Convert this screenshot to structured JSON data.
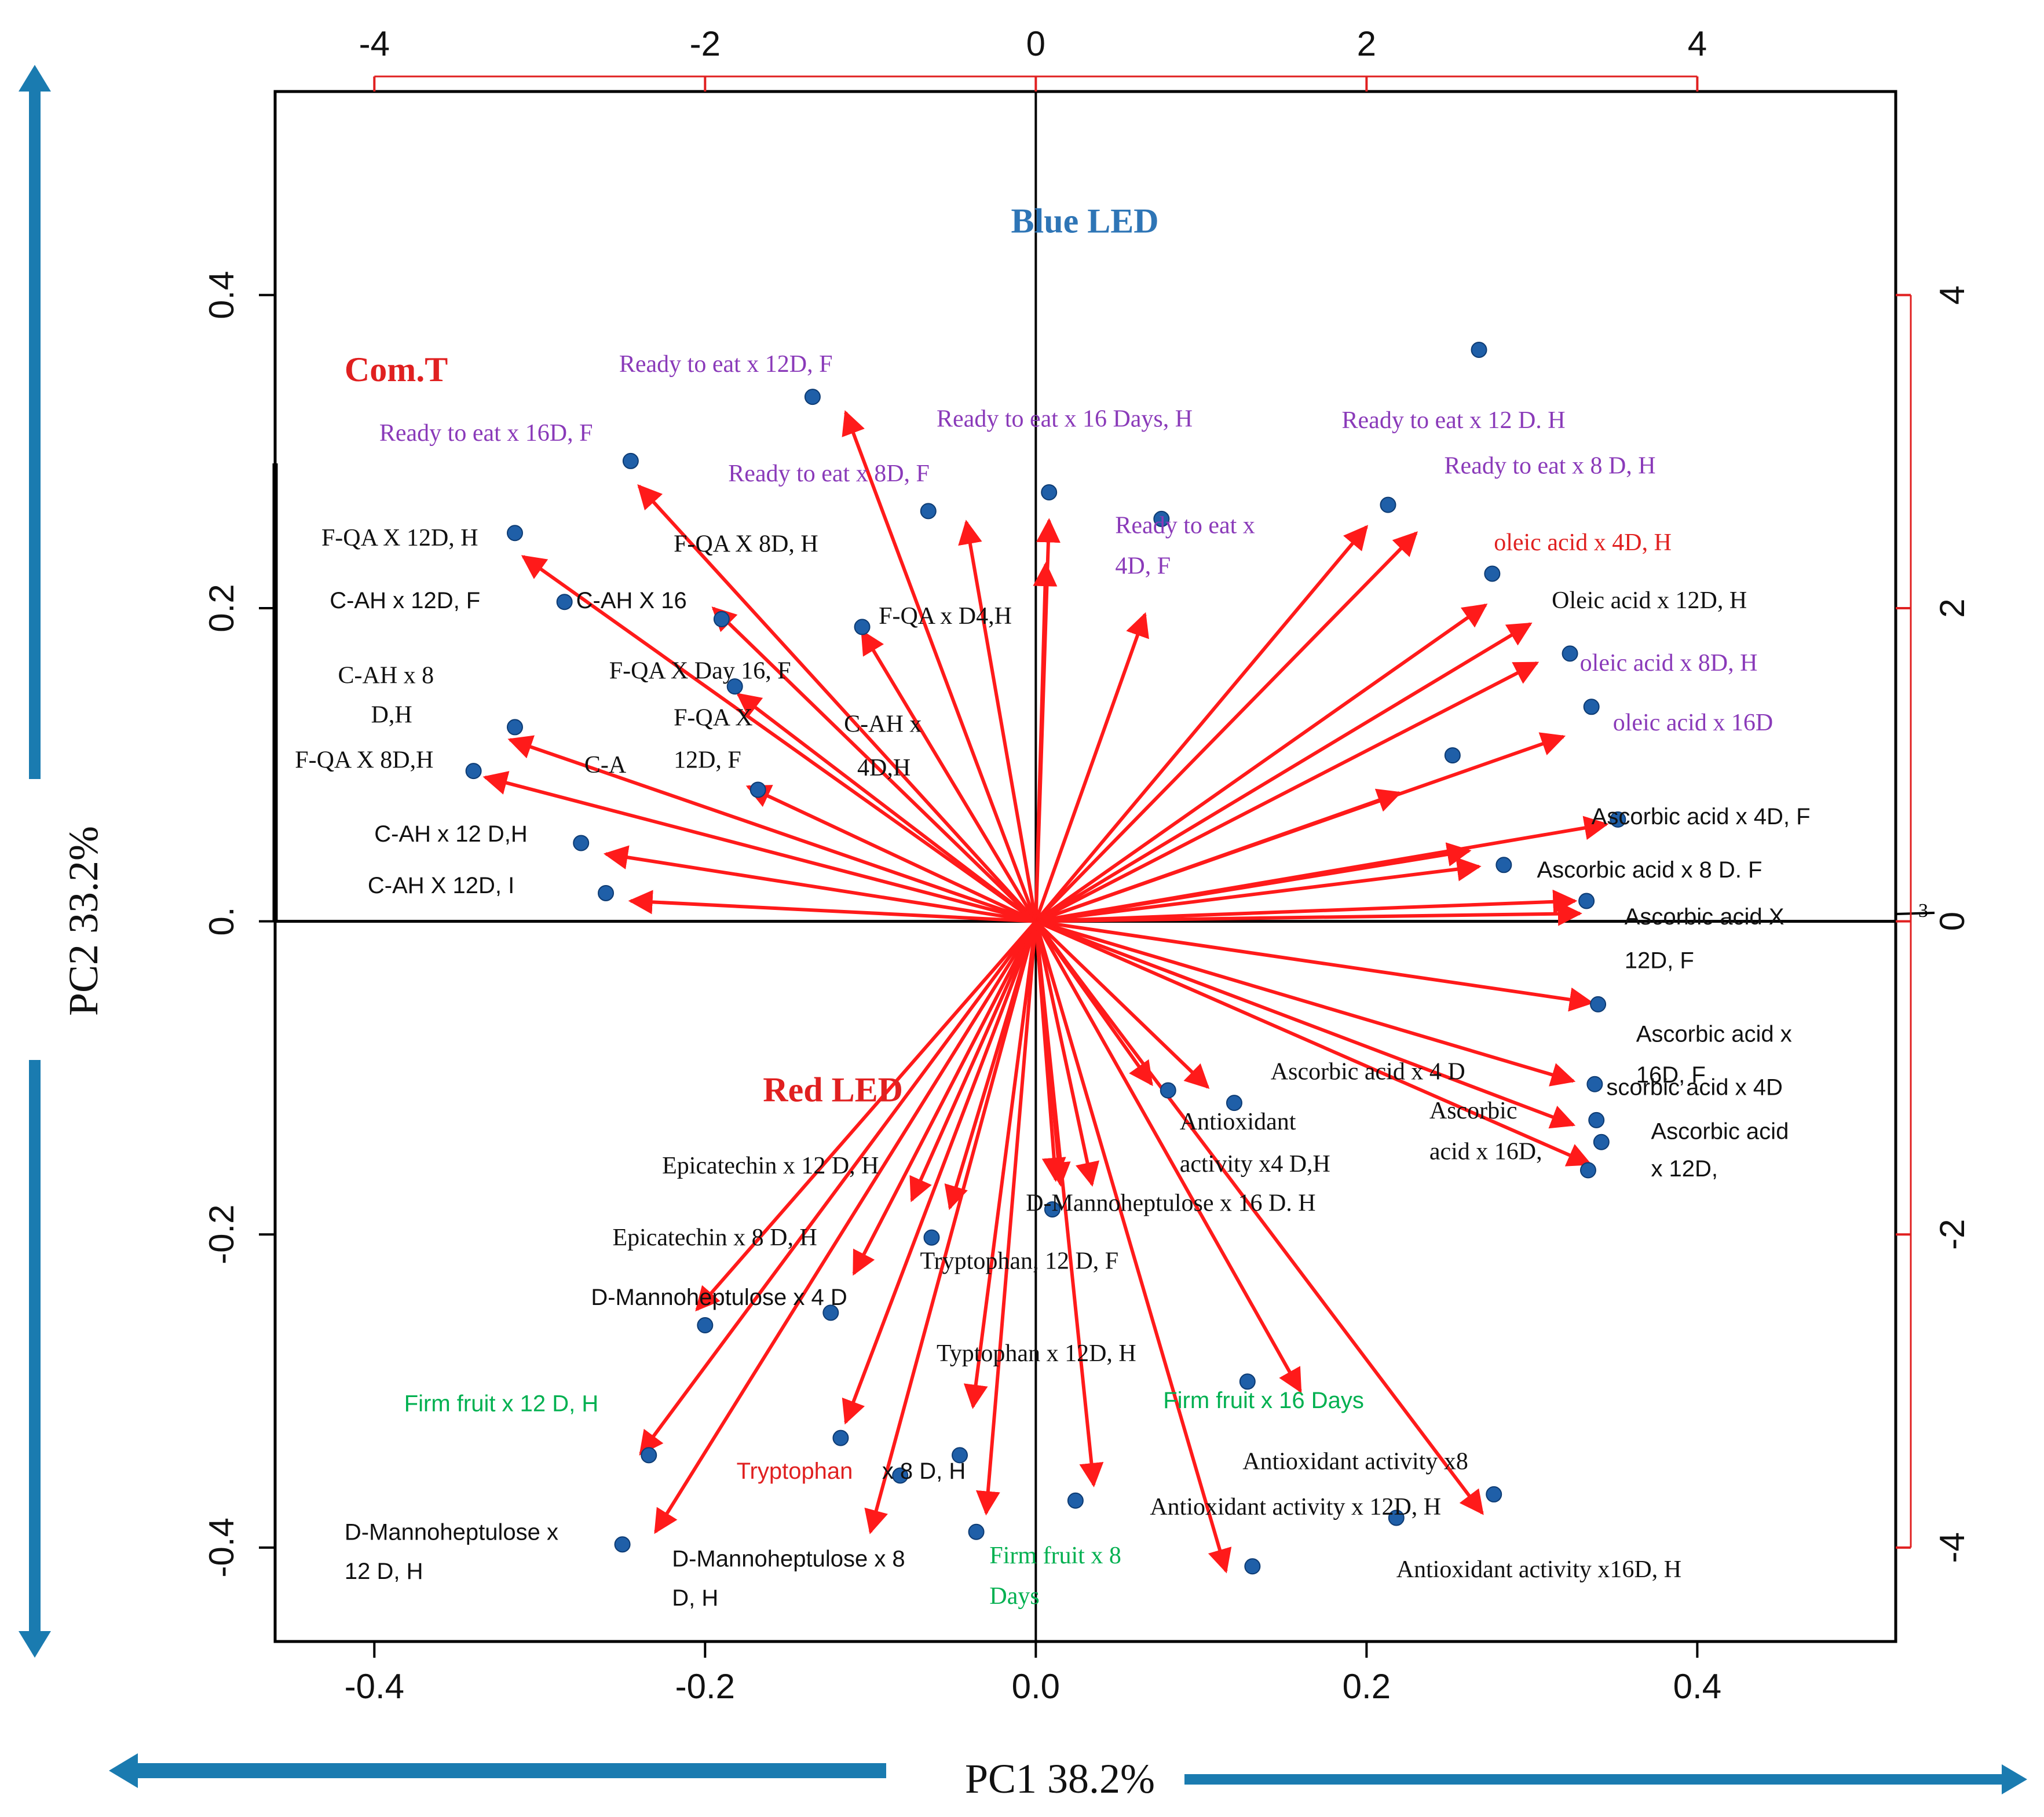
{
  "chart_data": {
    "type": "scatter",
    "xlabel": "PC1 38.2%",
    "ylabel": "PC2 33.2%",
    "xlim": [
      -0.46,
      0.52
    ],
    "ylim": [
      -0.46,
      0.53
    ],
    "x_ticks": [
      -0.4,
      -0.2,
      0.0,
      0.2,
      0.4
    ],
    "y_ticks": [
      -0.4,
      -0.2,
      0.0,
      0.2,
      0.4
    ],
    "x_tick_labels": [
      "-0.4",
      "-0.2",
      "0.0",
      "0.2",
      "0.4"
    ],
    "y_tick_labels": [
      "-0.4",
      "-0.2",
      "0.",
      "0.2",
      "0.4"
    ],
    "top_ticks": [
      -4,
      -2,
      0,
      2,
      4
    ],
    "top_tick_labels": [
      "-4",
      "-2",
      "0",
      "2",
      "4"
    ],
    "right_ticks": [
      -4,
      -2,
      0,
      2,
      4
    ],
    "right_tick_labels": [
      "-4",
      "-2",
      "0",
      "2",
      "4"
    ],
    "secondary_scale": 0.1,
    "colors": {
      "arrow": "#ff1a1a",
      "point": "#1f5fa8",
      "axis_arrow": "#1a7bb0",
      "purple": "#8a3ab9",
      "green": "#00b050",
      "red": "#e02020",
      "blue": "#2e75b6",
      "black": "#111111"
    },
    "group_labels": [
      {
        "text": "Blue LED",
        "x": -0.015,
        "y": 0.44,
        "color": "blue"
      },
      {
        "text": "Com.T",
        "x": -0.418,
        "y": 0.345,
        "color": "red"
      },
      {
        "text": "Red LED",
        "x": -0.165,
        "y": -0.115,
        "color": "red"
      }
    ],
    "points": [
      {
        "x": 0.268,
        "y": 0.365
      },
      {
        "x": -0.135,
        "y": 0.335
      },
      {
        "x": -0.245,
        "y": 0.294
      },
      {
        "x": 0.008,
        "y": 0.274
      },
      {
        "x": -0.065,
        "y": 0.262
      },
      {
        "x": 0.076,
        "y": 0.257
      },
      {
        "x": 0.213,
        "y": 0.266
      },
      {
        "x": -0.315,
        "y": 0.248
      },
      {
        "x": 0.276,
        "y": 0.222
      },
      {
        "x": -0.285,
        "y": 0.204
      },
      {
        "x": -0.19,
        "y": 0.193
      },
      {
        "x": -0.105,
        "y": 0.188
      },
      {
        "x": 0.323,
        "y": 0.171
      },
      {
        "x": -0.182,
        "y": 0.15
      },
      {
        "x": 0.336,
        "y": 0.137
      },
      {
        "x": -0.315,
        "y": 0.124
      },
      {
        "x": 0.252,
        "y": 0.106
      },
      {
        "x": -0.34,
        "y": 0.096
      },
      {
        "x": -0.168,
        "y": 0.084
      },
      {
        "x": 0.352,
        "y": 0.065
      },
      {
        "x": -0.275,
        "y": 0.05
      },
      {
        "x": 0.283,
        "y": 0.036
      },
      {
        "x": -0.26,
        "y": 0.018
      },
      {
        "x": 0.333,
        "y": 0.013
      },
      {
        "x": 0.34,
        "y": -0.053
      },
      {
        "x": 0.338,
        "y": -0.104
      },
      {
        "x": 0.08,
        "y": -0.108
      },
      {
        "x": 0.12,
        "y": -0.116
      },
      {
        "x": 0.339,
        "y": -0.127
      },
      {
        "x": 0.342,
        "y": -0.141
      },
      {
        "x": 0.334,
        "y": -0.159
      },
      {
        "x": 0.01,
        "y": -0.184
      },
      {
        "x": -0.063,
        "y": -0.202
      },
      {
        "x": -0.124,
        "y": -0.25
      },
      {
        "x": -0.2,
        "y": -0.258
      },
      {
        "x": 0.128,
        "y": -0.294
      },
      {
        "x": -0.234,
        "y": -0.341
      },
      {
        "x": -0.118,
        "y": -0.33
      },
      {
        "x": -0.046,
        "y": -0.341
      },
      {
        "x": -0.082,
        "y": -0.354
      },
      {
        "x": 0.024,
        "y": -0.37
      },
      {
        "x": 0.277,
        "y": -0.366
      },
      {
        "x": 0.218,
        "y": -0.381
      },
      {
        "x": -0.036,
        "y": -0.39
      },
      {
        "x": -0.25,
        "y": -0.398
      },
      {
        "x": 0.131,
        "y": -0.412
      }
    ],
    "arrows": [
      {
        "x": -0.115,
        "y": 0.325
      },
      {
        "x": -0.24,
        "y": 0.278
      },
      {
        "x": -0.042,
        "y": 0.255
      },
      {
        "x": 0.008,
        "y": 0.256
      },
      {
        "x": 0.006,
        "y": 0.228
      },
      {
        "x": 0.066,
        "y": 0.196
      },
      {
        "x": 0.2,
        "y": 0.252
      },
      {
        "x": 0.23,
        "y": 0.248
      },
      {
        "x": -0.31,
        "y": 0.233
      },
      {
        "x": 0.272,
        "y": 0.202
      },
      {
        "x": 0.299,
        "y": 0.19
      },
      {
        "x": -0.195,
        "y": 0.2
      },
      {
        "x": -0.105,
        "y": 0.185
      },
      {
        "x": 0.303,
        "y": 0.165
      },
      {
        "x": -0.18,
        "y": 0.145
      },
      {
        "x": 0.319,
        "y": 0.118
      },
      {
        "x": -0.318,
        "y": 0.116
      },
      {
        "x": -0.333,
        "y": 0.092
      },
      {
        "x": -0.174,
        "y": 0.086
      },
      {
        "x": 0.22,
        "y": 0.082
      },
      {
        "x": 0.345,
        "y": 0.062
      },
      {
        "x": -0.26,
        "y": 0.043
      },
      {
        "x": 0.268,
        "y": 0.035
      },
      {
        "x": 0.262,
        "y": 0.045
      },
      {
        "x": -0.245,
        "y": 0.013
      },
      {
        "x": 0.326,
        "y": 0.013
      },
      {
        "x": 0.329,
        "y": 0.005
      },
      {
        "x": 0.336,
        "y": -0.052
      },
      {
        "x": 0.325,
        "y": -0.102
      },
      {
        "x": 0.325,
        "y": -0.13
      },
      {
        "x": 0.335,
        "y": -0.155
      },
      {
        "x": 0.104,
        "y": -0.106
      },
      {
        "x": 0.07,
        "y": -0.104
      },
      {
        "x": 0.012,
        "y": -0.165
      },
      {
        "x": 0.034,
        "y": -0.168
      },
      {
        "x": 0.015,
        "y": -0.168
      },
      {
        "x": -0.075,
        "y": -0.178
      },
      {
        "x": -0.052,
        "y": -0.183
      },
      {
        "x": -0.11,
        "y": -0.225
      },
      {
        "x": -0.205,
        "y": -0.248
      },
      {
        "x": -0.115,
        "y": -0.32
      },
      {
        "x": -0.239,
        "y": -0.34
      },
      {
        "x": -0.038,
        "y": -0.31
      },
      {
        "x": 0.035,
        "y": -0.36
      },
      {
        "x": -0.1,
        "y": -0.39
      },
      {
        "x": -0.03,
        "y": -0.378
      },
      {
        "x": -0.23,
        "y": -0.39
      },
      {
        "x": 0.16,
        "y": -0.3
      },
      {
        "x": 0.27,
        "y": -0.378
      },
      {
        "x": 0.115,
        "y": -0.415
      }
    ],
    "labels": [
      {
        "text": "Ready to eat x 12D, F",
        "x": -0.252,
        "y": 0.351,
        "color": "purple",
        "font": "serif"
      },
      {
        "text": "Ready to eat x 16D, F",
        "x": -0.397,
        "y": 0.307,
        "color": "purple",
        "font": "serif"
      },
      {
        "text": "Ready to eat x 16 Days, H",
        "x": -0.06,
        "y": 0.316,
        "color": "purple",
        "font": "serif"
      },
      {
        "text": "Ready to eat x 12 D. H",
        "x": 0.185,
        "y": 0.315,
        "color": "purple",
        "font": "serif"
      },
      {
        "text": "Ready to eat x 8D, F",
        "x": -0.186,
        "y": 0.281,
        "color": "purple",
        "font": "serif"
      },
      {
        "text": "Ready to eat x 8 D, H",
        "x": 0.247,
        "y": 0.286,
        "color": "purple",
        "font": "serif"
      },
      {
        "text": "Ready to eat x",
        "x": 0.048,
        "y": 0.248,
        "color": "purple",
        "font": "serif"
      },
      {
        "text": "4D, F",
        "x": 0.048,
        "y": 0.222,
        "color": "purple",
        "font": "serif"
      },
      {
        "text": "F-QA X 12D, H",
        "x": -0.432,
        "y": 0.24,
        "color": "black",
        "font": "serif"
      },
      {
        "text": "F-QA X 8D, H",
        "x": -0.219,
        "y": 0.236,
        "color": "black",
        "font": "serif"
      },
      {
        "text": "oleic acid x 4D, H",
        "x": 0.277,
        "y": 0.237,
        "color": "red",
        "font": "serif"
      },
      {
        "text": "C-AH x 12D, F",
        "x": -0.427,
        "y": 0.2,
        "color": "black",
        "font": "sans"
      },
      {
        "text": "C-AH X 16",
        "x": -0.278,
        "y": 0.2,
        "color": "black",
        "font": "sans"
      },
      {
        "text": "F-QA x D4,H",
        "x": -0.095,
        "y": 0.19,
        "color": "black",
        "font": "serif"
      },
      {
        "text": "Oleic acid x 12D, H",
        "x": 0.312,
        "y": 0.2,
        "color": "black",
        "font": "serif"
      },
      {
        "text": "F-QA X Day 16, F",
        "x": -0.258,
        "y": 0.155,
        "color": "black",
        "font": "serif"
      },
      {
        "text": "oleic acid x 8D, H",
        "x": 0.329,
        "y": 0.16,
        "color": "purple",
        "font": "serif"
      },
      {
        "text": "C-AH x 8",
        "x": -0.422,
        "y": 0.152,
        "color": "black",
        "font": "serif"
      },
      {
        "text": "D,H",
        "x": -0.402,
        "y": 0.127,
        "color": "black",
        "font": "serif"
      },
      {
        "text": "F-QA X",
        "x": -0.219,
        "y": 0.125,
        "color": "black",
        "font": "serif"
      },
      {
        "text": "C-AH x",
        "x": -0.116,
        "y": 0.121,
        "color": "black",
        "font": "serif"
      },
      {
        "text": "oleic acid x 16D",
        "x": 0.349,
        "y": 0.122,
        "color": "purple",
        "font": "serif"
      },
      {
        "text": "F-QA X 8D,H",
        "x": -0.448,
        "y": 0.098,
        "color": "black",
        "font": "serif"
      },
      {
        "text": "C-A",
        "x": -0.273,
        "y": 0.095,
        "color": "black",
        "font": "serif"
      },
      {
        "text": "12D, F",
        "x": -0.219,
        "y": 0.098,
        "color": "black",
        "font": "serif"
      },
      {
        "text": "4D,H",
        "x": -0.108,
        "y": 0.093,
        "color": "black",
        "font": "serif"
      },
      {
        "text": "Ascorbic acid x 4D, F",
        "x": 0.336,
        "y": 0.062,
        "color": "black",
        "font": "sans"
      },
      {
        "text": "C-AH x 12 D,H",
        "x": -0.4,
        "y": 0.051,
        "color": "black",
        "font": "sans"
      },
      {
        "text": "Ascorbic acid x 8 D. F",
        "x": 0.303,
        "y": 0.028,
        "color": "black",
        "font": "sans"
      },
      {
        "text": "C-AH X 12D, I",
        "x": -0.404,
        "y": 0.018,
        "color": "black",
        "font": "sans"
      },
      {
        "text": "Ascorbic acid X",
        "x": 0.356,
        "y": -0.002,
        "color": "black",
        "font": "sans"
      },
      {
        "text": "12D, F",
        "x": 0.356,
        "y": -0.03,
        "color": "black",
        "font": "sans"
      },
      {
        "text": "Ascorbic acid x",
        "x": 0.363,
        "y": -0.077,
        "color": "black",
        "font": "sans"
      },
      {
        "text": "16D, F",
        "x": 0.363,
        "y": -0.103,
        "color": "black",
        "font": "sans"
      },
      {
        "text": "Ascorbic acid x 4 D",
        "x": 0.142,
        "y": -0.101,
        "color": "black",
        "font": "serif"
      },
      {
        "text": "scorbic acid x 4D",
        "x": 0.345,
        "y": -0.111,
        "color": "black",
        "font": "sans"
      },
      {
        "text": "Ascorbic",
        "x": 0.238,
        "y": -0.126,
        "color": "black",
        "font": "serif"
      },
      {
        "text": "acid x 16D,",
        "x": 0.238,
        "y": -0.152,
        "color": "black",
        "font": "serif"
      },
      {
        "text": "Ascorbic acid",
        "x": 0.372,
        "y": -0.139,
        "color": "black",
        "font": "sans"
      },
      {
        "text": "x 12D,",
        "x": 0.372,
        "y": -0.163,
        "color": "black",
        "font": "sans"
      },
      {
        "text": "Antioxidant",
        "x": 0.087,
        "y": -0.133,
        "color": "black",
        "font": "serif"
      },
      {
        "text": "activity x4 D,H",
        "x": 0.087,
        "y": -0.16,
        "color": "black",
        "font": "serif"
      },
      {
        "text": "Epicatechin x 12 D, H",
        "x": -0.226,
        "y": -0.161,
        "color": "black",
        "font": "serif"
      },
      {
        "text": "D-Mannoheptulose x 16 D. H",
        "x": -0.006,
        "y": -0.185,
        "color": "black",
        "font": "serif"
      },
      {
        "text": "Epicatechin x 8 D, H",
        "x": -0.256,
        "y": -0.207,
        "color": "black",
        "font": "serif"
      },
      {
        "text": "Tryptophan, 12 D, F",
        "x": -0.07,
        "y": -0.222,
        "color": "black",
        "font": "serif"
      },
      {
        "text": "D-Mannoheptulose x 4 D",
        "x": -0.269,
        "y": -0.245,
        "color": "black",
        "font": "sans"
      },
      {
        "text": "Typtophan x 12D, H",
        "x": -0.06,
        "y": -0.281,
        "color": "black",
        "font": "serif"
      },
      {
        "text": "Firm fruit x 12 D, H",
        "x": -0.382,
        "y": -0.313,
        "color": "green",
        "font": "sans"
      },
      {
        "text": "Firm fruit x 16 Days",
        "x": 0.077,
        "y": -0.311,
        "color": "green",
        "font": "sans"
      },
      {
        "text": "Antioxidant activity x8",
        "x": 0.125,
        "y": -0.35,
        "color": "black",
        "font": "serif"
      },
      {
        "text": "Tryptophan",
        "x": -0.181,
        "y": -0.356,
        "color": "red",
        "font": "sans"
      },
      {
        "text": "x 8 D, H",
        "x": -0.093,
        "y": -0.356,
        "color": "black",
        "font": "sans"
      },
      {
        "text": "Antioxidant activity x 12D, H",
        "x": 0.069,
        "y": -0.379,
        "color": "black",
        "font": "serif"
      },
      {
        "text": "D-Mannoheptulose x",
        "x": -0.418,
        "y": -0.395,
        "color": "black",
        "font": "sans"
      },
      {
        "text": "12 D, H",
        "x": -0.418,
        "y": -0.42,
        "color": "black",
        "font": "sans"
      },
      {
        "text": "D-Mannoheptulose x 8",
        "x": -0.22,
        "y": -0.412,
        "color": "black",
        "font": "sans"
      },
      {
        "text": "D, H",
        "x": -0.22,
        "y": -0.437,
        "color": "black",
        "font": "sans"
      },
      {
        "text": "Firm fruit x 8",
        "x": -0.028,
        "y": -0.41,
        "color": "green",
        "font": "serif"
      },
      {
        "text": "Days",
        "x": -0.028,
        "y": -0.436,
        "color": "green",
        "font": "serif"
      },
      {
        "text": "Antioxidant activity x16D, H",
        "x": 0.218,
        "y": -0.419,
        "color": "black",
        "font": "serif"
      }
    ]
  }
}
